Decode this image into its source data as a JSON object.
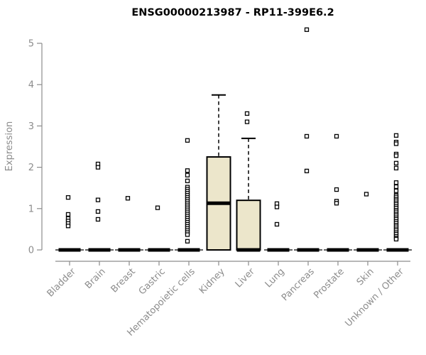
{
  "title": "ENSG00000213987 - RP11-399E6.2",
  "chart_data": {
    "type": "boxplot",
    "title": "ENSG00000213987 - RP11-399E6.2",
    "xlabel": "",
    "ylabel": "Expression",
    "ylim": [
      0,
      5
    ],
    "yticks": [
      0,
      1,
      2,
      3,
      4,
      5
    ],
    "grid": "off",
    "legend": "none",
    "categories": [
      "Bladder",
      "Brain",
      "Breast",
      "Gastric",
      "Hematopoietic cells",
      "Kidney",
      "Liver",
      "Lung",
      "Pancreas",
      "Prostate",
      "Skin",
      "Unknown / Other"
    ],
    "boxes": [
      {
        "category": "Bladder",
        "q1": 0,
        "median": 0,
        "q3": 0,
        "whisker_low": 0,
        "whisker_high": 0,
        "outliers": [
          1.27,
          0.86,
          0.76,
          0.7,
          0.64,
          0.58
        ]
      },
      {
        "category": "Brain",
        "q1": 0,
        "median": 0,
        "q3": 0,
        "whisker_low": 0,
        "whisker_high": 0,
        "outliers": [
          2.08,
          2.0,
          1.21,
          0.93,
          0.74
        ]
      },
      {
        "category": "Breast",
        "q1": 0,
        "median": 0,
        "q3": 0,
        "whisker_low": 0,
        "whisker_high": 0,
        "outliers": [
          1.25
        ]
      },
      {
        "category": "Gastric",
        "q1": 0,
        "median": 0,
        "q3": 0,
        "whisker_low": 0,
        "whisker_high": 0,
        "outliers": [
          1.02
        ]
      },
      {
        "category": "Hematopoietic cells",
        "q1": 0,
        "median": 0,
        "q3": 0,
        "whisker_low": 0,
        "whisker_high": 0,
        "outliers": [
          2.65,
          1.92,
          1.81,
          1.67,
          1.52,
          1.47,
          1.42,
          1.37,
          1.32,
          1.27,
          1.22,
          1.17,
          1.12,
          1.07,
          1.02,
          0.97,
          0.92,
          0.87,
          0.82,
          0.77,
          0.72,
          0.67,
          0.62,
          0.57,
          0.52,
          0.47,
          0.42,
          0.37,
          0.21
        ]
      },
      {
        "category": "Kidney",
        "q1": 0,
        "median": 1.13,
        "q3": 2.25,
        "whisker_low": 0,
        "whisker_high": 3.75,
        "outliers": []
      },
      {
        "category": "Liver",
        "q1": 0,
        "median": 0,
        "q3": 1.2,
        "whisker_low": 0,
        "whisker_high": 2.7,
        "outliers": [
          3.3,
          3.1
        ]
      },
      {
        "category": "Lung",
        "q1": 0,
        "median": 0,
        "q3": 0,
        "whisker_low": 0,
        "whisker_high": 0,
        "outliers": [
          1.12,
          1.04,
          0.62
        ]
      },
      {
        "category": "Pancreas",
        "q1": 0,
        "median": 0,
        "q3": 0,
        "whisker_low": 0,
        "whisker_high": 0,
        "outliers": [
          5.33,
          2.75,
          1.91
        ]
      },
      {
        "category": "Prostate",
        "q1": 0,
        "median": 0,
        "q3": 0,
        "whisker_low": 0,
        "whisker_high": 0,
        "outliers": [
          2.75,
          1.46,
          1.18,
          1.13
        ]
      },
      {
        "category": "Skin",
        "q1": 0,
        "median": 0,
        "q3": 0,
        "whisker_low": 0,
        "whisker_high": 0,
        "outliers": [
          1.35
        ]
      },
      {
        "category": "Unknown / Other",
        "q1": 0,
        "median": 0,
        "q3": 0,
        "whisker_low": 0,
        "whisker_high": 0,
        "outliers": [
          2.77,
          2.61,
          2.57,
          2.32,
          2.28,
          2.1,
          1.98,
          1.63,
          1.53,
          1.43,
          1.32,
          1.28,
          1.23,
          1.19,
          1.14,
          1.1,
          1.05,
          1.01,
          0.96,
          0.92,
          0.87,
          0.83,
          0.78,
          0.74,
          0.69,
          0.65,
          0.6,
          0.56,
          0.51,
          0.47,
          0.42,
          0.38,
          0.33,
          0.29,
          0.26
        ]
      }
    ],
    "colors": {
      "box_fill": "#ece6cb",
      "box_border": "#000000",
      "median": "#000000",
      "whisker": "#000000",
      "outlier_stroke": "#000000",
      "outlier_fill": "#ffffff",
      "axis_line": "#8c8c8c",
      "axis_text": "#8c8c8c",
      "title": "#000000"
    }
  }
}
